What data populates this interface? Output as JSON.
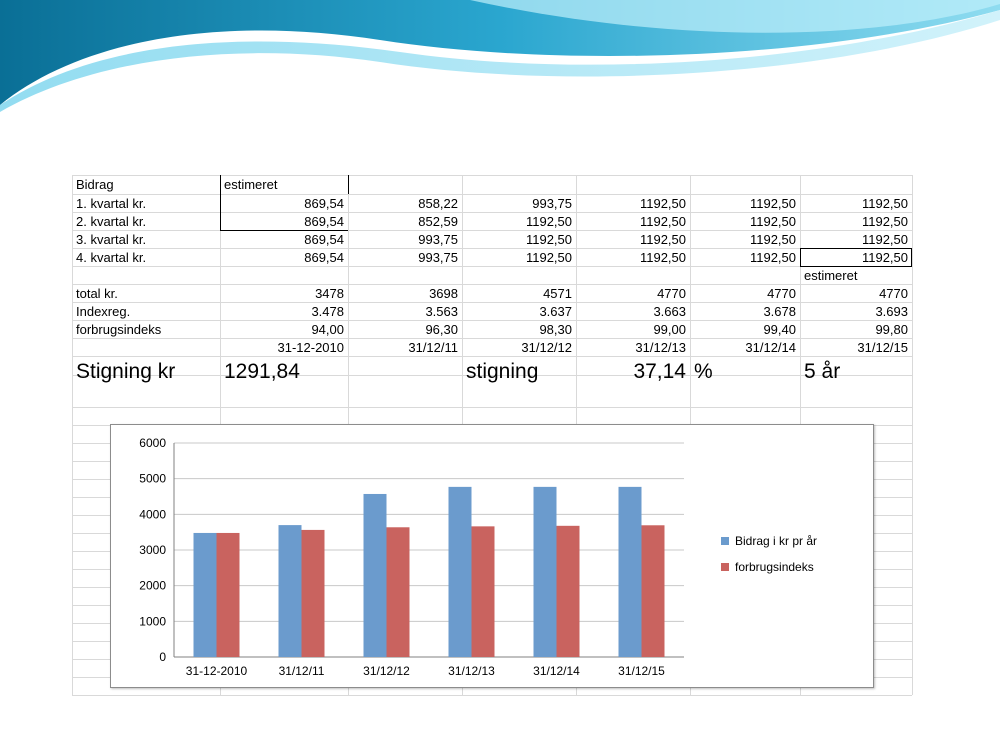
{
  "colors": {
    "wave_dark": "#0d7fa8",
    "wave_light": "#59c9e8",
    "series1": "#6b9bcd",
    "series2": "#c9635f",
    "grid": "#c8c8c8"
  },
  "table": {
    "label_col": [
      "Bidrag",
      "1. kvartal kr.",
      "2. kvartal kr.",
      "3. kvartal kr.",
      "4. kvartal kr.",
      "",
      "total kr.",
      "Indexreg.",
      "forbrugsindeks",
      ""
    ],
    "header_note": "estimeret",
    "rows": [
      [
        "869,54",
        "858,22",
        "993,75",
        "1192,50",
        "1192,50",
        "1192,50"
      ],
      [
        "869,54",
        "852,59",
        "1192,50",
        "1192,50",
        "1192,50",
        "1192,50"
      ],
      [
        "869,54",
        "993,75",
        "1192,50",
        "1192,50",
        "1192,50",
        "1192,50"
      ],
      [
        "869,54",
        "993,75",
        "1192,50",
        "1192,50",
        "1192,50",
        "1192,50"
      ]
    ],
    "estimeret_below": "estimeret",
    "total": [
      "3478",
      "3698",
      "4571",
      "4770",
      "4770",
      "4770"
    ],
    "indexreg": [
      "3.478",
      "3.563",
      "3.637",
      "3.663",
      "3.678",
      "3.693"
    ],
    "forbrug": [
      "94,00",
      "96,30",
      "98,30",
      "99,00",
      "99,40",
      "99,80"
    ],
    "dates": [
      "31-12-2010",
      "31/12/11",
      "31/12/12",
      "31/12/13",
      "31/12/14",
      "31/12/15"
    ],
    "summary": {
      "label": "Stigning kr",
      "value": "1291,84",
      "stigning_label": "stigning",
      "pct_value": "37,14",
      "pct_sign": "%",
      "years": "5 år"
    }
  },
  "chart_data": {
    "type": "bar",
    "categories": [
      "31-12-2010",
      "31/12/11",
      "31/12/12",
      "31/12/13",
      "31/12/14",
      "31/12/15"
    ],
    "series": [
      {
        "name": "Bidrag i kr pr år",
        "values": [
          3478,
          3698,
          4571,
          4770,
          4770,
          4770
        ]
      },
      {
        "name": "forbrugsindeks",
        "values": [
          3478,
          3563,
          3637,
          3663,
          3678,
          3693
        ]
      }
    ],
    "ylim": [
      0,
      6000
    ],
    "yticks": [
      "0",
      "1000",
      "2000",
      "3000",
      "4000",
      "5000",
      "6000"
    ],
    "grid": true,
    "legend": "right"
  }
}
